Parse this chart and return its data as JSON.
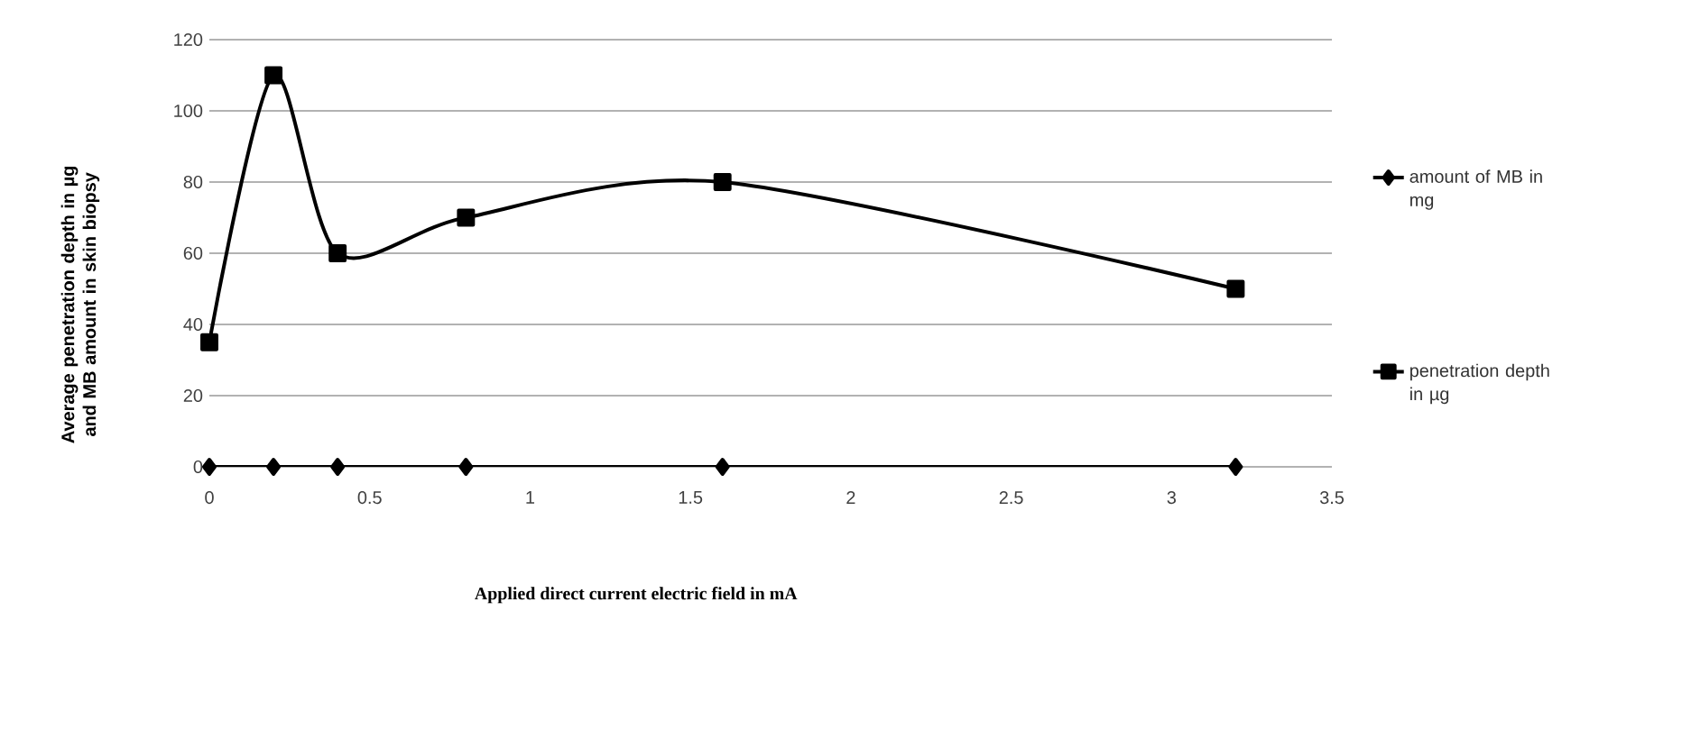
{
  "chart_data": {
    "type": "line",
    "xlabel": "Applied direct current electric field in mA",
    "ylabel": "Average penetration depth in µg and MB amount in skin biopsy",
    "x": [
      0,
      0.2,
      0.4,
      0.8,
      1.6,
      3.2
    ],
    "series": [
      {
        "name": "amount of MB in mg",
        "color": "#000000",
        "marker": "diamond",
        "values": [
          0,
          0,
          0,
          0,
          0,
          0
        ]
      },
      {
        "name": "penetration depth in µg",
        "color": "#000000",
        "marker": "square",
        "values": [
          35,
          110,
          60,
          70,
          80,
          50
        ]
      }
    ],
    "xlim": [
      0,
      3.5
    ],
    "xticks": [
      0,
      0.5,
      1,
      1.5,
      2,
      2.5,
      3,
      3.5
    ],
    "ylim": [
      0,
      120
    ],
    "yticks": [
      0,
      20,
      40,
      60,
      80,
      100,
      120
    ],
    "grid": "y",
    "legend": "right",
    "line_style": "solid"
  }
}
